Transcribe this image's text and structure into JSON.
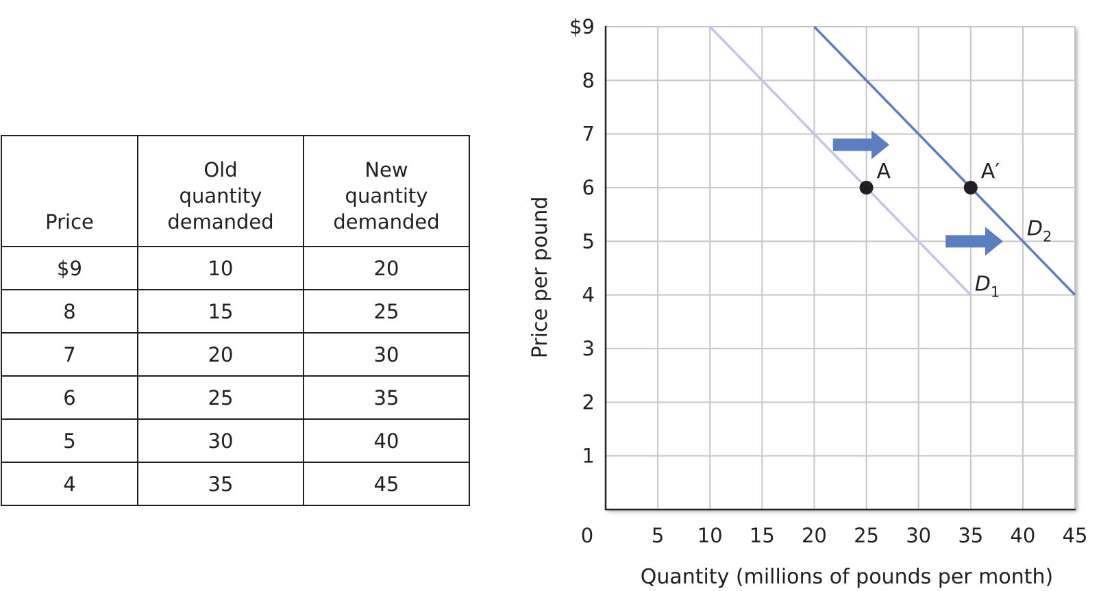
{
  "table": {
    "headers": [
      "Price",
      "Old quantity demanded",
      "New quantity demanded"
    ],
    "rows": [
      [
        "$9",
        "10",
        "20"
      ],
      [
        "8",
        "15",
        "25"
      ],
      [
        "7",
        "20",
        "30"
      ],
      [
        "6",
        "25",
        "35"
      ],
      [
        "5",
        "30",
        "40"
      ],
      [
        "4",
        "35",
        "45"
      ]
    ]
  },
  "chart_data": {
    "type": "line",
    "xlabel": "Quantity (millions of pounds per month)",
    "ylabel": "Price per pound",
    "xlim": [
      0,
      45
    ],
    "ylim": [
      0,
      9
    ],
    "x_ticks": [
      "0",
      "5",
      "10",
      "15",
      "20",
      "25",
      "30",
      "35",
      "40",
      "45"
    ],
    "y_ticks": [
      "$9",
      "8",
      "7",
      "6",
      "5",
      "4",
      "3",
      "2",
      "1"
    ],
    "grid": true,
    "series": [
      {
        "name": "D1",
        "x": [
          10,
          15,
          20,
          25,
          30,
          35
        ],
        "y": [
          9,
          8,
          7,
          6,
          5,
          4
        ],
        "color": "#c3c5e2"
      },
      {
        "name": "D2",
        "x": [
          20,
          25,
          30,
          35,
          40,
          45
        ],
        "y": [
          9,
          8,
          7,
          6,
          5,
          4
        ],
        "color": "#5c7dbf"
      }
    ],
    "points": [
      {
        "label": "A",
        "x": 25,
        "y": 6
      },
      {
        "label": "A′",
        "x": 35,
        "y": 6
      }
    ],
    "curve_labels": [
      {
        "main": "D",
        "sub": "1"
      },
      {
        "main": "D",
        "sub": "2"
      }
    ],
    "arrows": [
      {
        "direction": "right",
        "color": "#5c7dbf"
      },
      {
        "direction": "right",
        "color": "#5c7dbf"
      }
    ],
    "colors": {
      "grid": "#c6c6c6",
      "axis": "#231f20",
      "points": "#231f20"
    }
  }
}
